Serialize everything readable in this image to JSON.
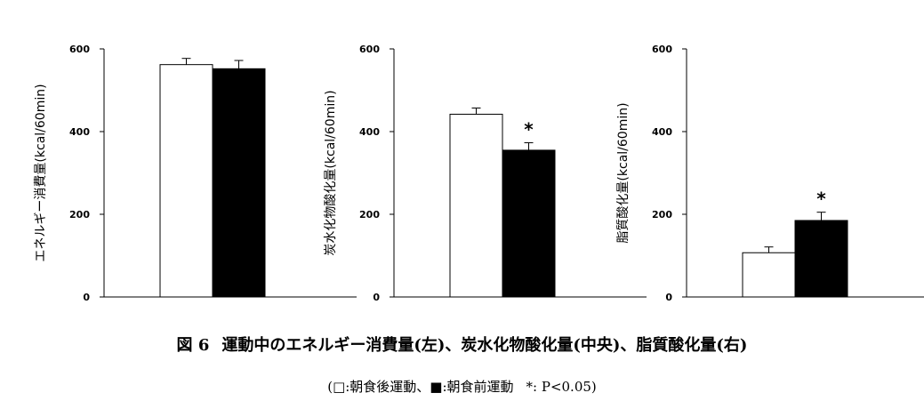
{
  "chart_data": [
    {
      "type": "bar",
      "ylabel": "エネルギー消費量(kcal/60min)",
      "ylim": [
        0,
        600
      ],
      "yticks": [
        0,
        200,
        400,
        600
      ],
      "series": [
        {
          "fill": "#ffffff",
          "values": [
            562
          ],
          "errors": [
            15
          ]
        },
        {
          "fill": "#000000",
          "values": [
            552
          ],
          "errors": [
            20
          ]
        }
      ],
      "significance": ""
    },
    {
      "type": "bar",
      "ylabel": "炭水化物酸化量(kcal/60min)",
      "ylim": [
        0,
        600
      ],
      "yticks": [
        0,
        200,
        400,
        600
      ],
      "series": [
        {
          "fill": "#ffffff",
          "values": [
            442
          ],
          "errors": [
            15
          ]
        },
        {
          "fill": "#000000",
          "values": [
            355
          ],
          "errors": [
            18
          ]
        }
      ],
      "significance": "*"
    },
    {
      "type": "bar",
      "ylabel": "脂質酸化量(kcal/60min)",
      "ylim": [
        0,
        600
      ],
      "yticks": [
        0,
        200,
        400,
        600
      ],
      "series": [
        {
          "fill": "#ffffff",
          "values": [
            107
          ],
          "errors": [
            14
          ]
        },
        {
          "fill": "#000000",
          "values": [
            185
          ],
          "errors": [
            20
          ]
        }
      ],
      "significance": "*"
    }
  ],
  "caption": {
    "figure_label": "図 6",
    "title": "運動中のエネルギー消費量(左)、炭水化物酸化量(中央)、脂質酸化量(右)",
    "legend": "(□:朝食後運動、■:朝食前運動",
    "note": "*: P<0.05)"
  }
}
